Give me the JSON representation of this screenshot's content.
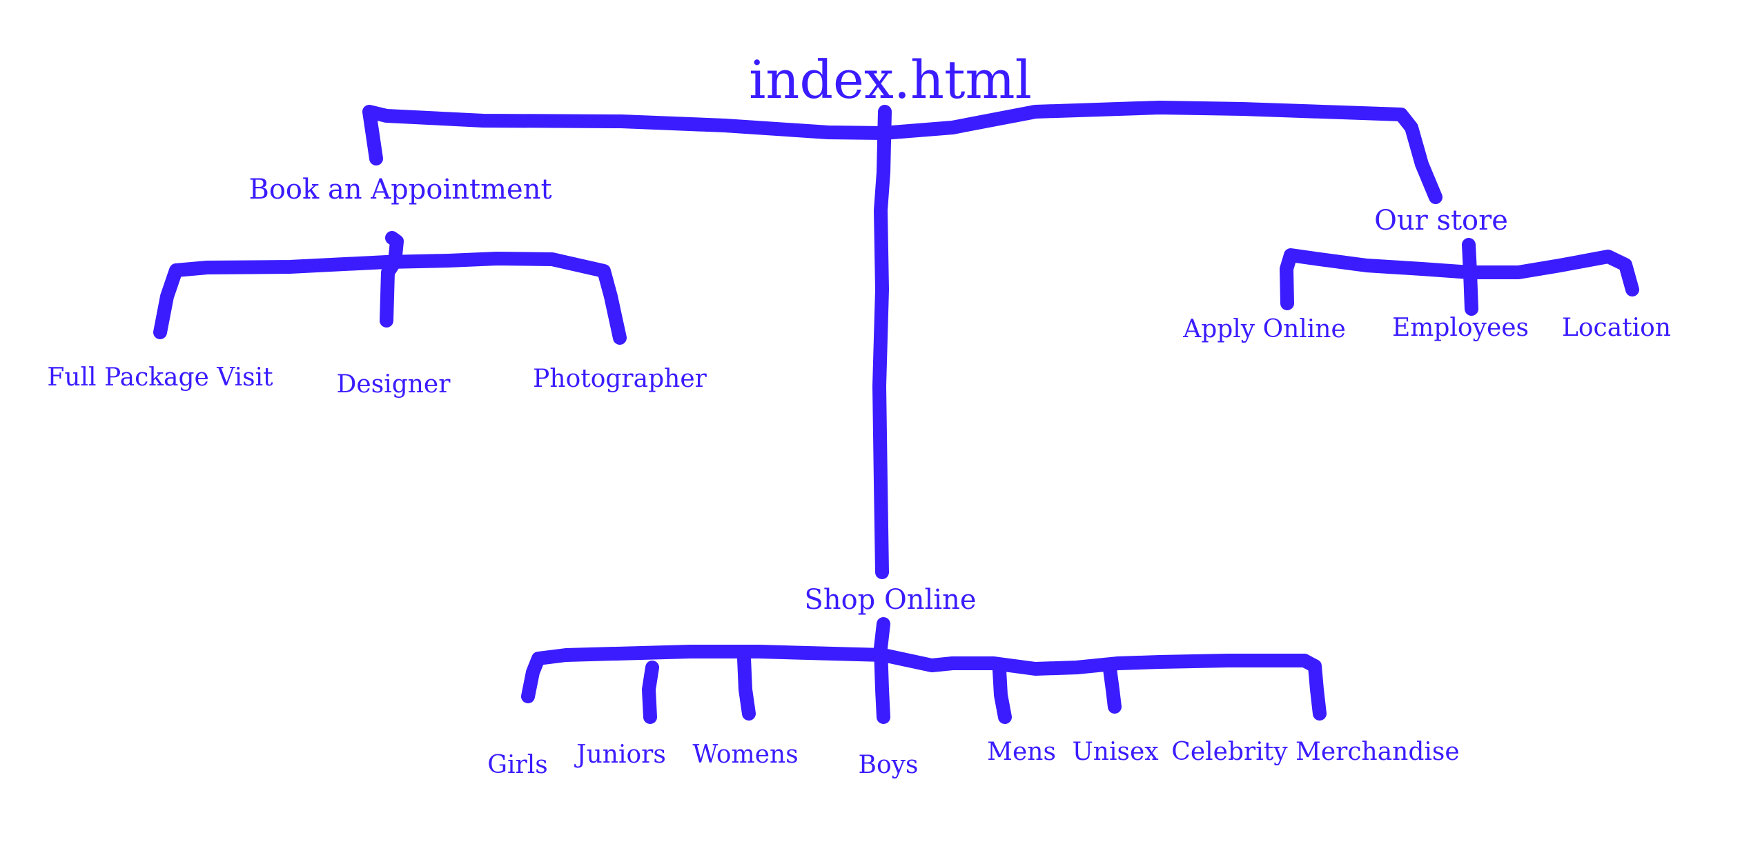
{
  "colors": {
    "ink": "#3a1cff",
    "background": "#ffffff"
  },
  "root": "index.html",
  "book": {
    "label": "Book an Appointment",
    "children": [
      "Full Package Visit",
      "Designer",
      "Photographer"
    ]
  },
  "store": {
    "label": "Our store",
    "children": [
      "Apply Online",
      "Employees",
      "Location"
    ]
  },
  "shop": {
    "label": "Shop Online",
    "children": [
      "Girls",
      "Juniors",
      "Womens",
      "Boys",
      "Mens",
      "Unisex",
      "Celebrity Merchandise"
    ]
  }
}
